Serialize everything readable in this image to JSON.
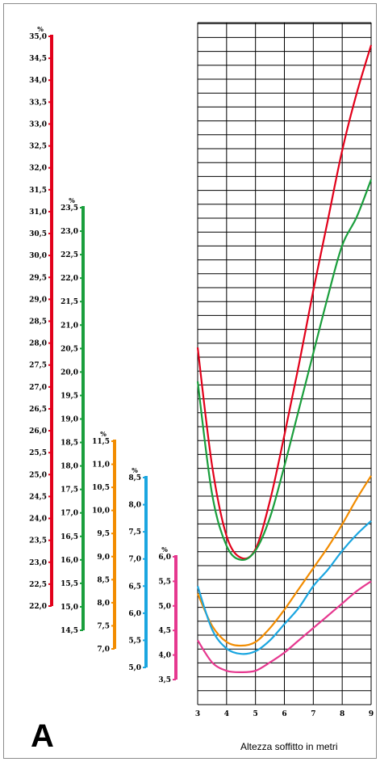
{
  "panel_label": "A",
  "chart_data": {
    "type": "line",
    "xlabel": "Altezza soffitto in metri",
    "x_ticks": [
      3,
      4,
      5,
      6,
      7,
      8,
      9
    ],
    "xlim": [
      3,
      9
    ],
    "grid": true,
    "axes": [
      {
        "color": "#e2001a",
        "unit": "%",
        "ylim": [
          22.0,
          35.0
        ],
        "step": 0.5,
        "tick_labels": [
          "22,0",
          "22,5",
          "23,0",
          "23,5",
          "24,0",
          "24,5",
          "25,0",
          "25,5",
          "26,0",
          "26,5",
          "27,0",
          "27,5",
          "28,0",
          "28,5",
          "29,0",
          "29,5",
          "30,0",
          "30,5",
          "31,0",
          "31,5",
          "32,0",
          "32,5",
          "33,0",
          "33,5",
          "34,0",
          "34,5",
          "35,0"
        ]
      },
      {
        "color": "#1a9e3c",
        "unit": "%",
        "ylim": [
          14.5,
          23.5
        ],
        "step": 0.5,
        "tick_labels": [
          "14,5",
          "15,0",
          "15,5",
          "16,0",
          "16,5",
          "17,0",
          "17,5",
          "18,0",
          "18,5",
          "19,0",
          "19,5",
          "20,0",
          "20,5",
          "21,0",
          "21,5",
          "22,0",
          "22,5",
          "23,0",
          "23,5"
        ]
      },
      {
        "color": "#f28c00",
        "unit": "%",
        "ylim": [
          7.0,
          11.5
        ],
        "step": 0.5,
        "tick_labels": [
          "7,0",
          "7,5",
          "8,0",
          "8,5",
          "9,0",
          "9,5",
          "10,0",
          "10,5",
          "11,0",
          "11,5"
        ]
      },
      {
        "color": "#1ba6e0",
        "unit": "%",
        "ylim": [
          5.0,
          8.5
        ],
        "step": 0.5,
        "tick_labels": [
          "5,0",
          "5,5",
          "6,0",
          "6,5",
          "7,0",
          "7,5",
          "8,0",
          "8,5"
        ]
      },
      {
        "color": "#e6388f",
        "unit": "%",
        "ylim": [
          3.5,
          6.0
        ],
        "step": 0.5,
        "tick_labels": [
          "3,5",
          "4,0",
          "4,5",
          "5,0",
          "5,5",
          "6,0"
        ]
      }
    ],
    "series": [
      {
        "color": "#e2001a",
        "x": [
          3,
          3.5,
          4,
          4.5,
          5,
          5.5,
          6,
          6.5,
          7,
          7.5,
          8,
          8.5,
          9
        ],
        "y": [
          27.9,
          25.2,
          23.6,
          23.1,
          23.3,
          24.4,
          25.9,
          27.5,
          29.2,
          30.8,
          32.4,
          33.7,
          34.8
        ]
      },
      {
        "color": "#1a9e3c",
        "x": [
          3,
          3.5,
          4,
          4.5,
          5,
          5.5,
          6,
          6.5,
          7,
          7.5,
          8,
          8.5,
          9
        ],
        "y": [
          19.8,
          17.4,
          16.3,
          16.0,
          16.2,
          16.9,
          18.0,
          19.2,
          20.4,
          21.6,
          22.7,
          23.3,
          24.1
        ]
      },
      {
        "color": "#f28c00",
        "x": [
          3,
          3.5,
          4,
          4.5,
          5,
          5.5,
          6,
          6.5,
          7,
          7.5,
          8,
          8.5,
          9
        ],
        "y": [
          8.2,
          7.5,
          7.15,
          7.07,
          7.15,
          7.45,
          7.85,
          8.3,
          8.75,
          9.2,
          9.7,
          10.25,
          10.75
        ]
      },
      {
        "color": "#1ba6e0",
        "x": [
          3,
          3.5,
          4,
          4.5,
          5,
          5.5,
          6,
          6.5,
          7,
          7.5,
          8,
          8.5,
          9
        ],
        "y": [
          6.5,
          5.7,
          5.35,
          5.25,
          5.3,
          5.5,
          5.8,
          6.1,
          6.5,
          6.8,
          7.15,
          7.45,
          7.7
        ]
      },
      {
        "color": "#e6388f",
        "x": [
          3,
          3.5,
          4,
          4.5,
          5,
          5.5,
          6,
          6.5,
          7,
          7.5,
          8,
          8.5,
          9
        ],
        "y": [
          4.3,
          3.85,
          3.68,
          3.65,
          3.68,
          3.85,
          4.05,
          4.3,
          4.55,
          4.8,
          5.05,
          5.3,
          5.5
        ]
      }
    ]
  }
}
